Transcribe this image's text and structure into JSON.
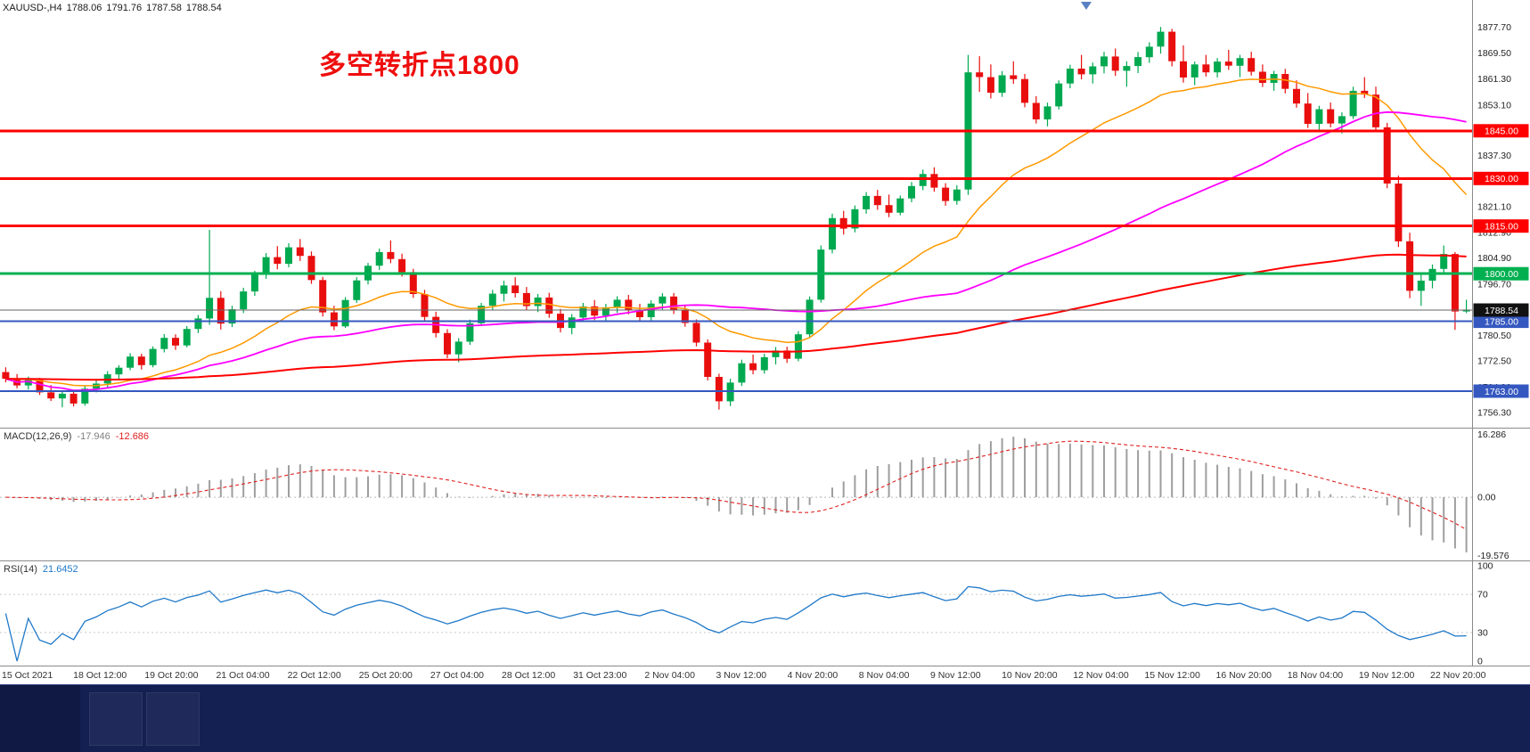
{
  "chart": {
    "info_symbol": "XAUUSD-,H4",
    "info_open": "1788.06",
    "info_high": "1791.76",
    "info_low": "1787.58",
    "info_close": "1788.54",
    "annotation": "多空转折点1800",
    "annotation_color": "#EF0D0D",
    "macd_label": "MACD(12,26,9)",
    "macd_value_main": "-17.946",
    "macd_value_signal": "-12.686",
    "rsi_label": "RSI(14)",
    "rsi_value": "21.6452"
  },
  "chart_data": {
    "type": "candlestick",
    "symbol": "XAUUSD-",
    "timeframe": "H4",
    "current_ohlc": {
      "open": 1788.06,
      "high": 1791.76,
      "low": 1787.58,
      "close": 1788.54
    },
    "price_axis": {
      "min": 1751.5,
      "max": 1886.2,
      "grid_labels": [
        "1877.70",
        "1869.50",
        "1861.30",
        "1853.10",
        "1845.10",
        "1837.30",
        "1829.10",
        "1821.10",
        "1812.90",
        "1804.90",
        "1796.70",
        "1788.70",
        "1780.50",
        "1772.50",
        "1764.30",
        "1756.30"
      ]
    },
    "x_axis": {
      "labels": [
        "15 Oct 2021",
        "18 Oct 12:00",
        "19 Oct 20:00",
        "21 Oct 04:00",
        "22 Oct 12:00",
        "25 Oct 20:00",
        "27 Oct 04:00",
        "28 Oct 12:00",
        "31 Oct 23:00",
        "2 Nov 04:00",
        "3 Nov 12:00",
        "4 Nov 20:00",
        "8 Nov 04:00",
        "9 Nov 12:00",
        "10 Nov 20:00",
        "12 Nov 04:00",
        "15 Nov 12:00",
        "16 Nov 20:00",
        "18 Nov 04:00",
        "19 Nov 12:00",
        "22 Nov 20:00"
      ]
    },
    "colors": {
      "up": "#00A94F",
      "down": "#E80E0E"
    },
    "candles": [
      [
        1769.0,
        1770.5,
        1765.8,
        1766.9
      ],
      [
        1766.9,
        1768.4,
        1763.9,
        1764.8
      ],
      [
        1764.8,
        1767.6,
        1763.5,
        1766.5
      ],
      [
        1766.5,
        1767.2,
        1761.8,
        1762.6
      ],
      [
        1762.6,
        1764.9,
        1759.9,
        1760.7
      ],
      [
        1760.7,
        1763.3,
        1757.9,
        1762.2
      ],
      [
        1762.2,
        1763.0,
        1758.2,
        1759.1
      ],
      [
        1759.1,
        1764.6,
        1758.4,
        1763.8
      ],
      [
        1763.8,
        1766.9,
        1762.6,
        1765.4
      ],
      [
        1765.4,
        1769.3,
        1764.2,
        1768.3
      ],
      [
        1768.3,
        1771.2,
        1766.5,
        1770.4
      ],
      [
        1770.4,
        1775.0,
        1769.6,
        1773.9
      ],
      [
        1773.9,
        1774.8,
        1769.8,
        1771.2
      ],
      [
        1771.2,
        1777.1,
        1770.5,
        1776.3
      ],
      [
        1776.3,
        1781.0,
        1775.2,
        1779.8
      ],
      [
        1779.8,
        1780.9,
        1776.0,
        1777.4
      ],
      [
        1777.4,
        1783.5,
        1776.8,
        1782.6
      ],
      [
        1782.6,
        1787.0,
        1781.3,
        1785.9
      ],
      [
        1785.9,
        1813.8,
        1783.9,
        1792.4
      ],
      [
        1792.4,
        1794.5,
        1782.4,
        1784.3
      ],
      [
        1784.3,
        1789.9,
        1783.2,
        1788.8
      ],
      [
        1788.8,
        1795.6,
        1787.6,
        1794.4
      ],
      [
        1794.4,
        1800.9,
        1793.0,
        1799.7
      ],
      [
        1799.7,
        1806.5,
        1798.4,
        1805.2
      ],
      [
        1805.2,
        1808.7,
        1801.4,
        1803.1
      ],
      [
        1803.1,
        1809.6,
        1802.0,
        1808.3
      ],
      [
        1808.3,
        1810.9,
        1804.0,
        1805.6
      ],
      [
        1805.6,
        1807.0,
        1796.8,
        1798.0
      ],
      [
        1798.0,
        1799.0,
        1786.5,
        1787.8
      ],
      [
        1787.8,
        1789.9,
        1782.2,
        1783.4
      ],
      [
        1783.4,
        1792.6,
        1782.9,
        1791.7
      ],
      [
        1791.7,
        1798.9,
        1790.8,
        1797.9
      ],
      [
        1797.9,
        1803.4,
        1796.6,
        1802.5
      ],
      [
        1802.5,
        1807.9,
        1801.2,
        1806.8
      ],
      [
        1806.8,
        1810.5,
        1803.3,
        1804.6
      ],
      [
        1804.6,
        1806.3,
        1799.1,
        1800.5
      ],
      [
        1800.5,
        1801.5,
        1792.4,
        1793.6
      ],
      [
        1793.6,
        1794.9,
        1785.3,
        1786.4
      ],
      [
        1786.4,
        1788.0,
        1779.9,
        1781.3
      ],
      [
        1781.3,
        1782.5,
        1773.4,
        1774.6
      ],
      [
        1774.6,
        1779.7,
        1772.1,
        1778.6
      ],
      [
        1778.6,
        1785.5,
        1777.6,
        1784.4
      ],
      [
        1784.4,
        1790.8,
        1783.5,
        1789.9
      ],
      [
        1789.9,
        1794.9,
        1788.6,
        1793.7
      ],
      [
        1793.7,
        1797.8,
        1791.2,
        1796.3
      ],
      [
        1796.3,
        1798.9,
        1792.5,
        1793.9
      ],
      [
        1793.9,
        1795.8,
        1788.5,
        1789.8
      ],
      [
        1789.8,
        1793.6,
        1787.9,
        1792.5
      ],
      [
        1792.5,
        1794.0,
        1786.1,
        1787.4
      ],
      [
        1787.4,
        1788.9,
        1781.5,
        1782.9
      ],
      [
        1782.9,
        1787.3,
        1780.9,
        1786.2
      ],
      [
        1786.2,
        1790.8,
        1784.9,
        1789.7
      ],
      [
        1789.7,
        1791.7,
        1785.4,
        1786.8
      ],
      [
        1786.8,
        1790.5,
        1784.8,
        1789.4
      ],
      [
        1789.4,
        1792.9,
        1787.7,
        1791.8
      ],
      [
        1791.8,
        1793.3,
        1787.2,
        1788.4
      ],
      [
        1788.4,
        1790.5,
        1785.1,
        1786.3
      ],
      [
        1786.3,
        1791.6,
        1785.3,
        1790.6
      ],
      [
        1790.6,
        1793.9,
        1788.5,
        1792.8
      ],
      [
        1792.8,
        1793.9,
        1787.3,
        1788.5
      ],
      [
        1788.5,
        1789.9,
        1783.3,
        1784.5
      ],
      [
        1784.5,
        1785.6,
        1777.1,
        1778.3
      ],
      [
        1778.3,
        1779.3,
        1766.4,
        1767.5
      ],
      [
        1767.5,
        1768.5,
        1757.2,
        1759.8
      ],
      [
        1759.8,
        1766.9,
        1758.3,
        1765.7
      ],
      [
        1765.7,
        1772.9,
        1764.6,
        1771.8
      ],
      [
        1771.8,
        1774.5,
        1768.3,
        1769.6
      ],
      [
        1769.6,
        1774.8,
        1768.5,
        1773.7
      ],
      [
        1773.7,
        1776.9,
        1771.4,
        1775.8
      ],
      [
        1775.8,
        1777.0,
        1771.9,
        1773.2
      ],
      [
        1773.2,
        1781.9,
        1772.4,
        1780.9
      ],
      [
        1780.9,
        1792.8,
        1780.1,
        1791.8
      ],
      [
        1791.8,
        1808.9,
        1790.9,
        1807.6
      ],
      [
        1807.6,
        1818.9,
        1806.4,
        1817.5
      ],
      [
        1817.5,
        1819.8,
        1812.3,
        1814.2
      ],
      [
        1814.2,
        1821.5,
        1813.0,
        1820.3
      ],
      [
        1820.3,
        1825.7,
        1818.9,
        1824.5
      ],
      [
        1824.5,
        1826.4,
        1820.1,
        1821.6
      ],
      [
        1821.6,
        1824.9,
        1817.8,
        1819.2
      ],
      [
        1819.2,
        1824.6,
        1818.4,
        1823.7
      ],
      [
        1823.7,
        1828.9,
        1822.5,
        1827.6
      ],
      [
        1827.6,
        1832.8,
        1826.3,
        1831.4
      ],
      [
        1831.4,
        1833.5,
        1825.8,
        1827.1
      ],
      [
        1827.1,
        1828.5,
        1821.4,
        1822.9
      ],
      [
        1822.9,
        1827.9,
        1821.7,
        1826.5
      ],
      [
        1826.5,
        1868.9,
        1824.8,
        1863.4
      ],
      [
        1863.4,
        1868.5,
        1857.3,
        1861.9
      ],
      [
        1861.9,
        1865.9,
        1855.2,
        1857.0
      ],
      [
        1857.0,
        1863.8,
        1855.7,
        1862.5
      ],
      [
        1862.5,
        1866.9,
        1859.8,
        1861.3
      ],
      [
        1861.3,
        1862.9,
        1852.4,
        1853.8
      ],
      [
        1853.8,
        1855.9,
        1847.3,
        1848.6
      ],
      [
        1848.6,
        1853.9,
        1846.4,
        1852.7
      ],
      [
        1852.7,
        1860.9,
        1851.7,
        1859.9
      ],
      [
        1859.9,
        1865.8,
        1858.4,
        1864.6
      ],
      [
        1864.6,
        1868.9,
        1861.2,
        1862.8
      ],
      [
        1862.8,
        1866.5,
        1859.9,
        1865.3
      ],
      [
        1865.3,
        1869.9,
        1863.1,
        1868.4
      ],
      [
        1868.4,
        1870.9,
        1862.3,
        1863.9
      ],
      [
        1863.9,
        1866.9,
        1858.9,
        1865.4
      ],
      [
        1865.4,
        1869.8,
        1863.2,
        1868.2
      ],
      [
        1868.2,
        1872.9,
        1866.4,
        1871.5
      ],
      [
        1871.5,
        1877.7,
        1869.3,
        1876.2
      ],
      [
        1876.2,
        1877.1,
        1865.3,
        1866.9
      ],
      [
        1866.9,
        1871.9,
        1860.2,
        1861.8
      ],
      [
        1861.8,
        1866.8,
        1859.4,
        1865.9
      ],
      [
        1865.9,
        1868.9,
        1862.1,
        1863.4
      ],
      [
        1863.4,
        1867.9,
        1861.8,
        1866.8
      ],
      [
        1866.8,
        1870.5,
        1864.2,
        1865.5
      ],
      [
        1865.5,
        1868.9,
        1861.9,
        1867.9
      ],
      [
        1867.9,
        1869.9,
        1862.4,
        1863.6
      ],
      [
        1863.6,
        1865.9,
        1858.8,
        1860.1
      ],
      [
        1860.1,
        1863.9,
        1857.6,
        1862.9
      ],
      [
        1862.9,
        1864.5,
        1856.8,
        1858.2
      ],
      [
        1858.2,
        1860.9,
        1852.3,
        1853.6
      ],
      [
        1853.6,
        1856.9,
        1845.9,
        1847.2
      ],
      [
        1847.2,
        1852.9,
        1845.4,
        1851.8
      ],
      [
        1851.8,
        1853.9,
        1846.1,
        1847.3
      ],
      [
        1847.3,
        1850.8,
        1844.2,
        1849.6
      ],
      [
        1849.6,
        1858.9,
        1848.7,
        1857.6
      ],
      [
        1857.6,
        1861.9,
        1855.3,
        1856.4
      ],
      [
        1856.4,
        1858.9,
        1844.8,
        1846.1
      ],
      [
        1846.1,
        1847.5,
        1826.9,
        1828.4
      ],
      [
        1828.4,
        1830.9,
        1808.4,
        1810.2
      ],
      [
        1810.2,
        1812.9,
        1792.3,
        1794.6
      ],
      [
        1794.6,
        1799.9,
        1789.9,
        1797.8
      ],
      [
        1797.8,
        1802.9,
        1795.4,
        1801.5
      ],
      [
        1801.5,
        1808.9,
        1799.8,
        1806.2
      ],
      [
        1806.2,
        1806.8,
        1782.3,
        1788.1
      ],
      [
        1788.1,
        1791.8,
        1787.6,
        1788.5
      ]
    ],
    "moving_averages": [
      {
        "name": "ma-fast",
        "method": "ema",
        "period": 20,
        "color": "#FF9900",
        "width": 1.5
      },
      {
        "name": "ma-medium",
        "method": "sma",
        "period": 50,
        "color": "#FF00FF",
        "width": 1.8
      },
      {
        "name": "ma-slow",
        "method": "ema",
        "period": 200,
        "color": "#FF0000",
        "width": 2
      }
    ],
    "hlines": [
      {
        "label": "1845.00",
        "price": 1845.0,
        "color": "#FF0000",
        "width": 3
      },
      {
        "label": "1830.00",
        "price": 1830.0,
        "color": "#FF0000",
        "width": 3
      },
      {
        "label": "1815.00",
        "price": 1815.0,
        "color": "#FF0000",
        "width": 3
      },
      {
        "label": "1800.00",
        "price": 1800.0,
        "color": "#00B050",
        "width": 3
      },
      {
        "label": "1785.00",
        "price": 1785.0,
        "color": "#3558C0",
        "width": 2
      },
      {
        "label": "1763.00",
        "price": 1763.0,
        "color": "#3558C0",
        "width": 2
      }
    ],
    "current_price": {
      "label": "1788.54",
      "price": 1788.54,
      "line_color": "#666666",
      "badge_color": "#111111"
    },
    "macd": {
      "params": "12,26,9",
      "value_main": -17.946,
      "value_signal": -12.686,
      "axis_labels": [
        "16.286",
        "0.00",
        "-19.576"
      ],
      "hist_color": "#9E9E9E",
      "signal_color": "#E02020"
    },
    "rsi_cfg": {
      "period": 14,
      "value": 21.6452,
      "axis_labels": [
        "100",
        "70",
        "30",
        "0"
      ],
      "levels": [
        70,
        30
      ],
      "color": "#1E78C8"
    }
  },
  "ui": {
    "shift_marker_color": "#5B80C4",
    "taskbar_color": "#141F52"
  }
}
